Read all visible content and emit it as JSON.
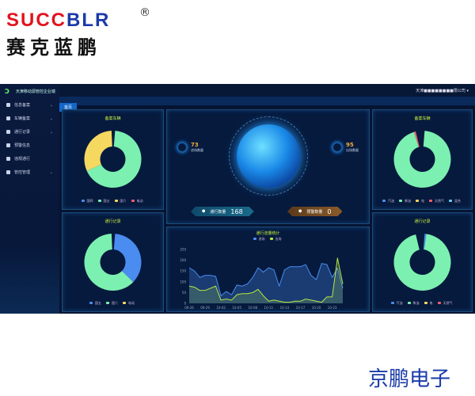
{
  "logo": {
    "en_red": "SUCC",
    "en_blue": "BLR",
    "reg": "®",
    "cn": "赛克蓝鹏"
  },
  "footer": "京鹏电子",
  "app": {
    "title": "天津移动源管控企业端",
    "user": "天津■■■■■■■■限公司",
    "tab": "首页"
  },
  "sidebar": {
    "items": [
      {
        "label": "信息备案",
        "chevron": true
      },
      {
        "label": "车辆备案",
        "chevron": true
      },
      {
        "label": "通行记录",
        "chevron": true
      },
      {
        "label": "预警信息",
        "chevron": false
      },
      {
        "label": "违规通行",
        "chevron": false
      },
      {
        "label": "管控管理",
        "chevron": true
      }
    ]
  },
  "center": {
    "in_value": "73",
    "in_label": "进场数量",
    "out_value": "95",
    "out_label": "出场数量",
    "pass_label": "通行数量",
    "pass_value": "168",
    "warn_label": "预警数量",
    "warn_value": "0"
  },
  "donuts": [
    {
      "title": "备案车辆",
      "legend": [
        "国四",
        "国五",
        "国六",
        "电动"
      ],
      "colors": [
        "#4a8cf0",
        "#7cf0b0",
        "#f5d860",
        "#f06070"
      ],
      "values": [
        0,
        67,
        31,
        0
      ]
    },
    {
      "title": "通行记录",
      "legend": [
        "国五",
        "国六",
        "电动"
      ],
      "colors": [
        "#4a8cf0",
        "#7cf0b0",
        "#f5d860"
      ],
      "values": [
        36,
        62,
        0
      ]
    },
    {
      "title": "备案车辆",
      "legend": [
        "汽油",
        "柴油",
        "电",
        "天然气",
        "混合"
      ],
      "colors": [
        "#4a8cf0",
        "#7cf0b0",
        "#f5d860",
        "#f06070",
        "#6ac8f0"
      ],
      "values": [
        0,
        94,
        0,
        1,
        0
      ]
    },
    {
      "title": "通行记录",
      "legend": [
        "汽油",
        "柴油",
        "电",
        "天然气"
      ],
      "colors": [
        "#4a8cf0",
        "#7cf0b0",
        "#f5d860",
        "#f06070"
      ],
      "values": [
        1,
        94,
        0,
        0
      ]
    }
  ],
  "chart_data": {
    "type": "area",
    "title": "通行流量统计",
    "ylim": [
      0,
      250
    ],
    "yticks": [
      0,
      50,
      100,
      150,
      200,
      250
    ],
    "x": [
      "09-26",
      "09-27",
      "09-28",
      "09-29",
      "09-30",
      "10-01",
      "10-02",
      "10-03",
      "10-04",
      "10-05",
      "10-06",
      "10-07",
      "10-08",
      "10-09",
      "10-10",
      "10-11",
      "10-12",
      "10-13",
      "10-14",
      "10-15",
      "10-16",
      "10-17",
      "10-18",
      "10-19",
      "10-20",
      "10-21",
      "10-22",
      "10-23",
      "10-24",
      "10-25"
    ],
    "xticks": [
      "09-26",
      "09-29",
      "10-02",
      "10-05",
      "10-08",
      "10-11",
      "10-14",
      "10-17",
      "10-20",
      "10-23"
    ],
    "series": [
      {
        "name": "进场",
        "color": "#4a8cf0",
        "values": [
          165,
          150,
          120,
          130,
          130,
          125,
          35,
          55,
          40,
          85,
          80,
          90,
          120,
          165,
          145,
          165,
          155,
          80,
          155,
          170,
          170,
          170,
          180,
          130,
          110,
          185,
          180,
          120,
          165,
          70
        ]
      },
      {
        "name": "出场",
        "color": "#b8e840",
        "values": [
          80,
          75,
          60,
          60,
          70,
          80,
          15,
          20,
          15,
          40,
          45,
          45,
          50,
          65,
          35,
          10,
          15,
          10,
          5,
          5,
          10,
          10,
          20,
          15,
          10,
          5,
          30,
          30,
          210,
          90
        ]
      }
    ]
  }
}
